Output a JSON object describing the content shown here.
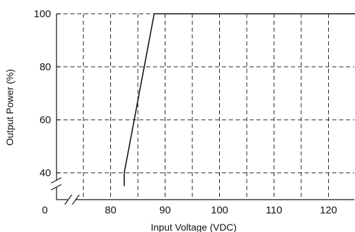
{
  "chart_data": {
    "type": "line",
    "xlabel": "Input Voltage (VDC)",
    "ylabel": "Output Power (%)",
    "xlim": [
      75,
      125
    ],
    "ylim": [
      35,
      100
    ],
    "x_ticks": [
      {
        "value": 80,
        "label": "80"
      },
      {
        "value": 90,
        "label": "90"
      },
      {
        "value": 100,
        "label": "100"
      },
      {
        "value": 110,
        "label": "110"
      },
      {
        "value": 120,
        "label": "120"
      }
    ],
    "x_origin_label": "0",
    "y_ticks": [
      {
        "value": 40,
        "label": "40"
      },
      {
        "value": 60,
        "label": "60"
      },
      {
        "value": 80,
        "label": "80"
      },
      {
        "value": 100,
        "label": "100"
      }
    ],
    "x_grid": [
      75,
      80,
      85,
      90,
      95,
      100,
      105,
      110,
      115,
      120
    ],
    "y_grid": [
      40,
      60,
      80,
      100
    ],
    "axis_breaks": [
      "x",
      "y"
    ],
    "grid": true,
    "grid_style": "dashed",
    "series": [
      {
        "points": [
          {
            "x": 82.5,
            "y": 35
          },
          {
            "x": 82.5,
            "y": 40
          },
          {
            "x": 88,
            "y": 100
          },
          {
            "x": 125,
            "y": 100
          }
        ]
      }
    ]
  }
}
